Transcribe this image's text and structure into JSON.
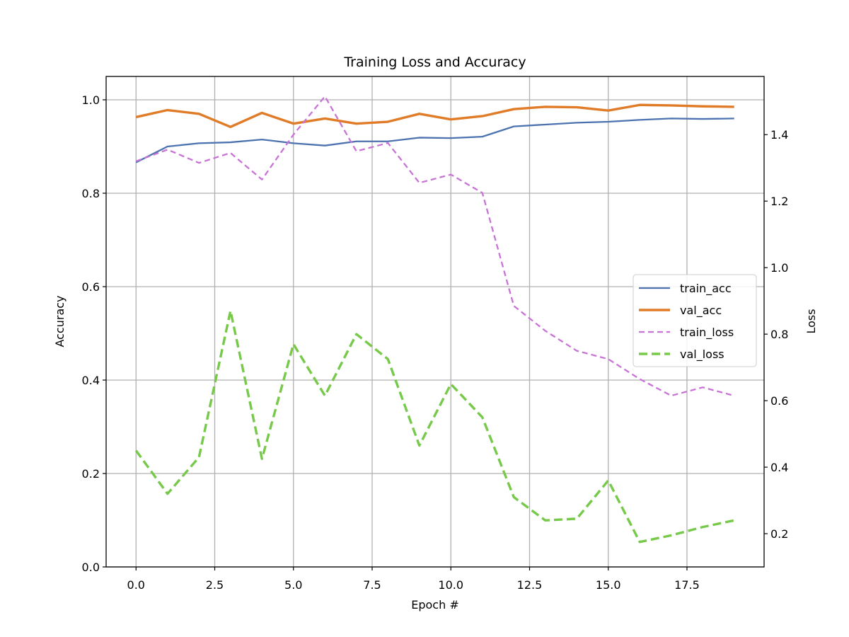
{
  "chart_data": {
    "type": "line",
    "title": "Training Loss and Accuracy",
    "xlabel": "Epoch #",
    "ylabel": "Accuracy",
    "y2label": "Loss",
    "xlim": [
      -0.95,
      19.95
    ],
    "ylim": [
      0.0,
      1.05
    ],
    "y2lim": [
      0.1,
      1.575
    ],
    "xticks": [
      0.0,
      2.5,
      5.0,
      7.5,
      10.0,
      12.5,
      15.0,
      17.5
    ],
    "xtick_labels": [
      "0.0",
      "2.5",
      "5.0",
      "7.5",
      "10.0",
      "12.5",
      "15.0",
      "17.5"
    ],
    "yticks": [
      0.0,
      0.2,
      0.4,
      0.6,
      0.8,
      1.0
    ],
    "ytick_labels": [
      "0.0",
      "0.2",
      "0.4",
      "0.6",
      "0.8",
      "1.0"
    ],
    "y2ticks": [
      0.2,
      0.4,
      0.6,
      0.8,
      1.0,
      1.2,
      1.4
    ],
    "y2tick_labels": [
      "0.2",
      "0.4",
      "0.6",
      "0.8",
      "1.0",
      "1.2",
      "1.4"
    ],
    "grid": true,
    "legend_position": "center-right",
    "x": [
      0,
      1,
      2,
      3,
      4,
      5,
      6,
      7,
      8,
      9,
      10,
      11,
      12,
      13,
      14,
      15,
      16,
      17,
      18,
      19
    ],
    "series": [
      {
        "name": "train_acc",
        "axis": "left",
        "color": "#4c72b0",
        "dash": "solid",
        "values": [
          0.866,
          0.9,
          0.907,
          0.909,
          0.915,
          0.907,
          0.902,
          0.911,
          0.911,
          0.919,
          0.918,
          0.921,
          0.943,
          0.947,
          0.951,
          0.953,
          0.957,
          0.96,
          0.959,
          0.96
        ]
      },
      {
        "name": "val_acc",
        "axis": "left",
        "color": "#e07b28",
        "dash": "solid",
        "values": [
          0.963,
          0.978,
          0.97,
          0.942,
          0.972,
          0.949,
          0.96,
          0.949,
          0.953,
          0.97,
          0.958,
          0.965,
          0.98,
          0.985,
          0.984,
          0.977,
          0.989,
          0.988,
          0.986,
          0.985
        ]
      },
      {
        "name": "train_loss",
        "axis": "right",
        "color": "#c874d6",
        "dash": "dashed",
        "values": [
          1.32,
          1.355,
          1.315,
          1.345,
          1.265,
          1.4,
          1.515,
          1.35,
          1.375,
          1.255,
          1.28,
          1.225,
          0.885,
          0.81,
          0.75,
          0.725,
          0.665,
          0.615,
          0.64,
          0.615
        ]
      },
      {
        "name": "val_loss",
        "axis": "right",
        "color": "#77c94a",
        "dash": "dashed",
        "values": [
          0.45,
          0.32,
          0.43,
          0.87,
          0.425,
          0.77,
          0.615,
          0.8,
          0.725,
          0.465,
          0.65,
          0.55,
          0.31,
          0.24,
          0.245,
          0.36,
          0.175,
          0.195,
          0.22,
          0.24
        ]
      }
    ]
  }
}
